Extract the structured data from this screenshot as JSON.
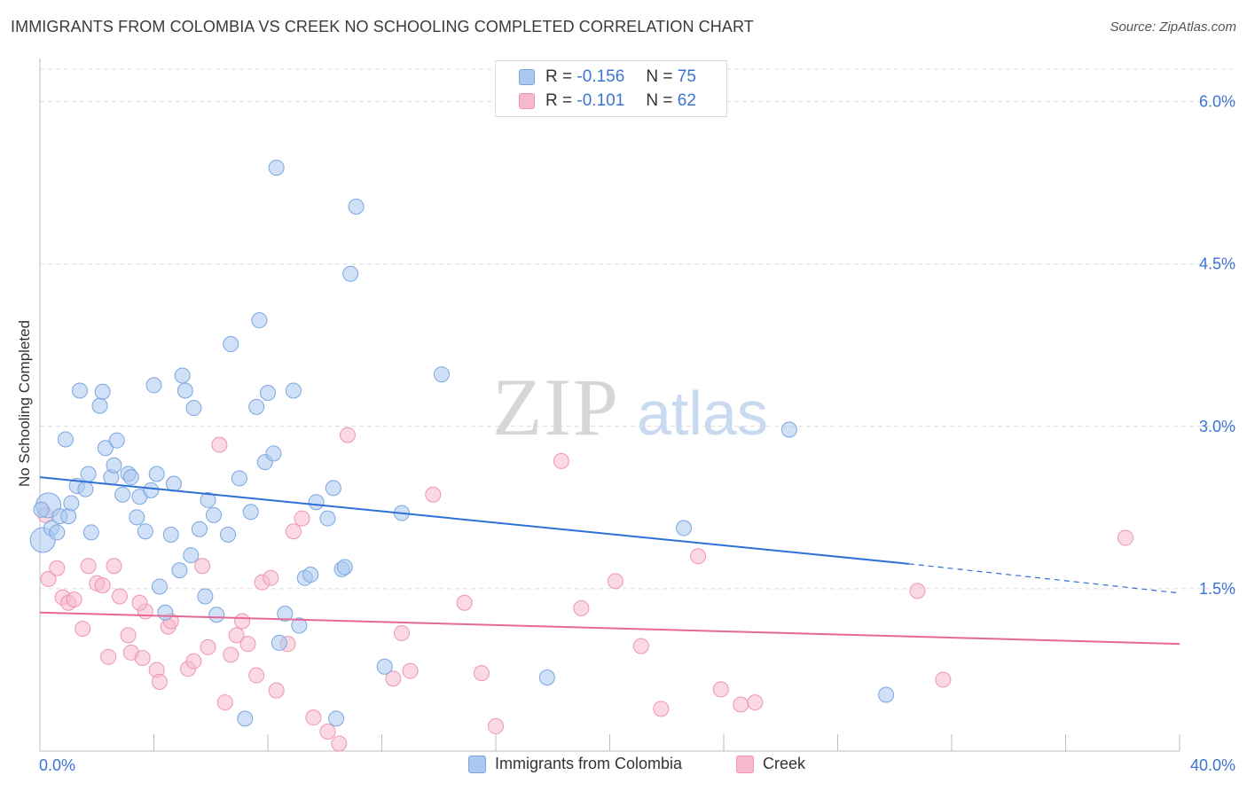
{
  "header": {
    "title": "IMMIGRANTS FROM COLOMBIA VS CREEK NO SCHOOLING COMPLETED CORRELATION CHART",
    "source": "Source: ZipAtlas.com"
  },
  "legend_top": [
    {
      "r_label": "R =",
      "r_value": "-0.156",
      "n_label": "N =",
      "n_value": "75"
    },
    {
      "r_label": "R =",
      "r_value": "-0.101",
      "n_label": "N =",
      "n_value": "62"
    }
  ],
  "colors": {
    "colombia_fill": "#aac8f0",
    "colombia_stroke": "#7aa6e0",
    "colombia_line": "#2e6fd6",
    "creek_fill": "#f7b9cc",
    "creek_stroke": "#ee95b0",
    "creek_line": "#e56a93",
    "axis_text": "#3b74d4",
    "grid": "#dcdcdc"
  },
  "chart_data": {
    "type": "scatter",
    "title": "IMMIGRANTS FROM COLOMBIA VS CREEK NO SCHOOLING COMPLETED CORRELATION CHART",
    "xlabel": "",
    "ylabel": "No Schooling Completed",
    "xlim": [
      0,
      40
    ],
    "ylim": [
      0,
      6.3
    ],
    "y_ticks": [
      1.5,
      3.0,
      4.5,
      6.0
    ],
    "y_tick_labels": [
      "1.5%",
      "3.0%",
      "4.5%",
      "6.0%"
    ],
    "x_tick_labels": [
      "0.0%",
      "40.0%"
    ],
    "watermark": "ZIPatlas",
    "grid": true,
    "series": [
      {
        "name": "Immigrants from Colombia",
        "trend": {
          "x0": 0,
          "y0": 2.53,
          "x1": 30.5,
          "y1": 1.73,
          "dash_to_x": 40,
          "dash_to_y": 1.46
        },
        "points": [
          [
            0.1,
            1.95
          ],
          [
            0.3,
            2.27
          ],
          [
            0.4,
            2.06
          ],
          [
            0.6,
            2.02
          ],
          [
            0.7,
            2.17
          ],
          [
            0.9,
            2.88
          ],
          [
            1.0,
            2.17
          ],
          [
            1.1,
            2.29
          ],
          [
            1.3,
            2.45
          ],
          [
            1.4,
            3.33
          ],
          [
            1.6,
            2.42
          ],
          [
            1.7,
            2.56
          ],
          [
            1.8,
            2.02
          ],
          [
            2.1,
            3.19
          ],
          [
            2.2,
            3.32
          ],
          [
            2.3,
            2.8
          ],
          [
            2.5,
            2.53
          ],
          [
            2.6,
            2.64
          ],
          [
            2.7,
            2.87
          ],
          [
            2.9,
            2.37
          ],
          [
            3.1,
            2.56
          ],
          [
            3.2,
            2.53
          ],
          [
            3.4,
            2.16
          ],
          [
            3.5,
            2.35
          ],
          [
            3.7,
            2.03
          ],
          [
            3.9,
            2.41
          ],
          [
            4.0,
            3.38
          ],
          [
            4.1,
            2.56
          ],
          [
            4.2,
            1.52
          ],
          [
            4.4,
            1.28
          ],
          [
            4.6,
            2.0
          ],
          [
            4.7,
            2.47
          ],
          [
            4.9,
            1.67
          ],
          [
            5.0,
            3.47
          ],
          [
            5.1,
            3.33
          ],
          [
            5.3,
            1.81
          ],
          [
            5.4,
            3.17
          ],
          [
            5.6,
            2.05
          ],
          [
            5.8,
            1.43
          ],
          [
            5.9,
            2.32
          ],
          [
            6.1,
            2.18
          ],
          [
            6.2,
            1.26
          ],
          [
            6.6,
            2.0
          ],
          [
            6.7,
            3.76
          ],
          [
            7.0,
            2.52
          ],
          [
            7.2,
            0.3
          ],
          [
            7.4,
            2.21
          ],
          [
            7.6,
            3.18
          ],
          [
            7.7,
            3.98
          ],
          [
            7.9,
            2.67
          ],
          [
            8.0,
            3.31
          ],
          [
            8.2,
            2.75
          ],
          [
            8.3,
            5.39
          ],
          [
            8.4,
            1.0
          ],
          [
            8.6,
            1.27
          ],
          [
            8.9,
            3.33
          ],
          [
            9.1,
            1.16
          ],
          [
            9.3,
            1.6
          ],
          [
            9.5,
            1.63
          ],
          [
            9.7,
            2.3
          ],
          [
            10.1,
            2.15
          ],
          [
            10.3,
            2.43
          ],
          [
            10.4,
            0.3
          ],
          [
            10.6,
            1.68
          ],
          [
            10.7,
            1.7
          ],
          [
            10.9,
            4.41
          ],
          [
            11.1,
            5.03
          ],
          [
            12.1,
            0.78
          ],
          [
            12.7,
            2.2
          ],
          [
            14.1,
            3.48
          ],
          [
            17.8,
            0.68
          ],
          [
            22.6,
            2.06
          ],
          [
            26.3,
            2.97
          ],
          [
            29.7,
            0.52
          ],
          [
            0.05,
            2.23
          ]
        ]
      },
      {
        "name": "Creek",
        "trend": {
          "x0": 0,
          "y0": 1.28,
          "x1": 40,
          "y1": 0.99
        },
        "points": [
          [
            0.2,
            2.18
          ],
          [
            0.3,
            1.59
          ],
          [
            0.6,
            1.69
          ],
          [
            0.8,
            1.42
          ],
          [
            1.0,
            1.37
          ],
          [
            1.2,
            1.4
          ],
          [
            1.5,
            1.13
          ],
          [
            1.7,
            1.71
          ],
          [
            2.0,
            1.55
          ],
          [
            2.2,
            1.53
          ],
          [
            2.4,
            0.87
          ],
          [
            2.6,
            1.71
          ],
          [
            2.8,
            1.43
          ],
          [
            3.1,
            1.07
          ],
          [
            3.2,
            0.91
          ],
          [
            3.6,
            0.86
          ],
          [
            3.7,
            1.29
          ],
          [
            4.1,
            0.75
          ],
          [
            4.2,
            0.64
          ],
          [
            4.5,
            1.15
          ],
          [
            4.6,
            1.2
          ],
          [
            5.2,
            0.76
          ],
          [
            5.4,
            0.83
          ],
          [
            5.7,
            1.71
          ],
          [
            5.9,
            0.96
          ],
          [
            6.3,
            2.83
          ],
          [
            6.5,
            0.45
          ],
          [
            6.7,
            0.89
          ],
          [
            6.9,
            1.07
          ],
          [
            7.1,
            1.2
          ],
          [
            7.3,
            0.99
          ],
          [
            7.6,
            0.7
          ],
          [
            7.8,
            1.56
          ],
          [
            8.1,
            1.6
          ],
          [
            8.3,
            0.56
          ],
          [
            8.7,
            0.99
          ],
          [
            8.9,
            2.03
          ],
          [
            9.2,
            2.15
          ],
          [
            9.6,
            0.31
          ],
          [
            10.1,
            0.18
          ],
          [
            10.5,
            0.07
          ],
          [
            10.8,
            2.92
          ],
          [
            12.4,
            0.67
          ],
          [
            12.7,
            1.09
          ],
          [
            13.0,
            0.74
          ],
          [
            13.8,
            2.37
          ],
          [
            14.9,
            1.37
          ],
          [
            15.5,
            0.72
          ],
          [
            16.0,
            0.23
          ],
          [
            18.3,
            2.68
          ],
          [
            19.0,
            1.32
          ],
          [
            20.2,
            1.57
          ],
          [
            21.1,
            0.97
          ],
          [
            21.8,
            0.39
          ],
          [
            23.1,
            1.8
          ],
          [
            23.9,
            0.57
          ],
          [
            24.6,
            0.43
          ],
          [
            25.1,
            0.45
          ],
          [
            30.8,
            1.48
          ],
          [
            31.7,
            0.66
          ],
          [
            38.1,
            1.97
          ],
          [
            3.5,
            1.37
          ]
        ]
      }
    ]
  },
  "legend_bottom": [
    "Immigrants from Colombia",
    "Creek"
  ]
}
